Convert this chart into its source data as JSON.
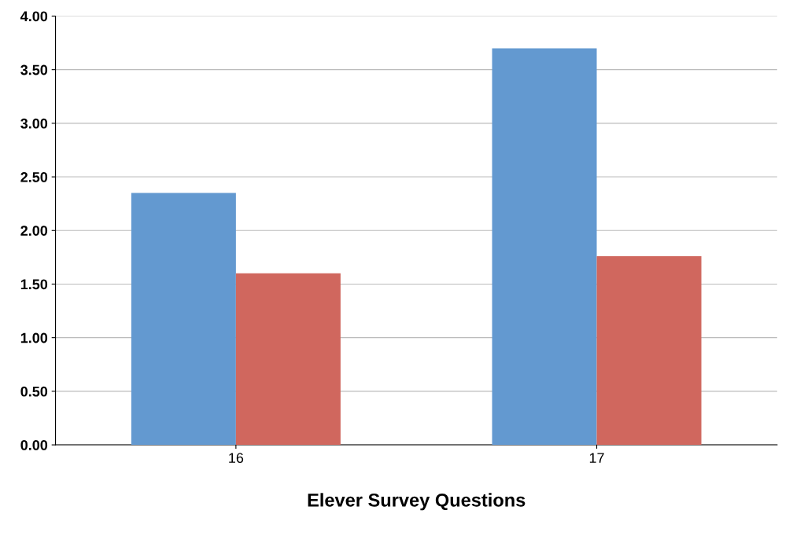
{
  "chart_data": {
    "type": "bar",
    "xlabel": "Elever Survey Questions",
    "categories": [
      "16",
      "17"
    ],
    "series": [
      {
        "color": "#6399d0",
        "values": [
          2.35,
          3.7
        ]
      },
      {
        "color": "#d0675e",
        "values": [
          1.6,
          1.76
        ]
      }
    ],
    "ylim": [
      0,
      4
    ],
    "yticks": [
      {
        "value": 0,
        "label": "0.00"
      },
      {
        "value": 0.5,
        "label": "0.50"
      },
      {
        "value": 1,
        "label": "1.00"
      },
      {
        "value": 1.5,
        "label": "1.50"
      },
      {
        "value": 2,
        "label": "2.00"
      },
      {
        "value": 2.5,
        "label": "2.50"
      },
      {
        "value": 3,
        "label": "3.00"
      },
      {
        "value": 3.5,
        "label": "3.50"
      },
      {
        "value": 4,
        "label": "4.00"
      }
    ],
    "grid": "y"
  }
}
